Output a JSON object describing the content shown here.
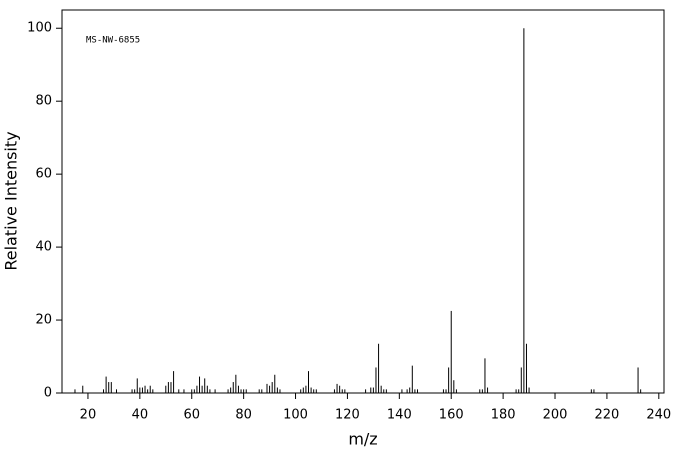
{
  "chart_data": {
    "type": "stem",
    "annotation": "MS-NW-6855",
    "xlabel": "m/z",
    "ylabel": "Relative Intensity",
    "color": "#000000",
    "x": [
      15,
      18,
      26,
      27,
      28,
      29,
      31,
      37,
      38,
      39,
      40,
      41,
      42,
      43,
      44,
      45,
      50,
      51,
      52,
      53,
      55,
      57,
      60,
      61,
      62,
      63,
      64,
      65,
      66,
      67,
      69,
      74,
      75,
      76,
      77,
      78,
      79,
      80,
      81,
      86,
      87,
      89,
      90,
      91,
      92,
      93,
      94,
      102,
      103,
      104,
      105,
      106,
      107,
      108,
      115,
      116,
      117,
      118,
      119,
      127,
      129,
      130,
      131,
      132,
      133,
      134,
      135,
      141,
      143,
      144,
      145,
      146,
      147,
      157,
      158,
      159,
      160,
      161,
      162,
      171,
      172,
      173,
      174,
      185,
      186,
      187,
      188,
      189,
      190,
      214,
      215,
      232,
      233
    ],
    "values": [
      1,
      2,
      1,
      4.5,
      3,
      3,
      1,
      1,
      1,
      4,
      1.5,
      1.5,
      2,
      1,
      2,
      1,
      2,
      3,
      3,
      6,
      1,
      1,
      1,
      1,
      2,
      4.5,
      2,
      4,
      2,
      1,
      1,
      1,
      1.5,
      3,
      5,
      2,
      1,
      1,
      1,
      1,
      1,
      2.5,
      2,
      3,
      5,
      1.5,
      1,
      1,
      1.5,
      2,
      6,
      1.5,
      1,
      1,
      1,
      2.5,
      2,
      1,
      1,
      1,
      1.5,
      1.5,
      7,
      13.5,
      2,
      1,
      1,
      1,
      1,
      1.5,
      7.5,
      1,
      1,
      1,
      1,
      7,
      22.5,
      3.5,
      1,
      1,
      1,
      9.5,
      1.5,
      1,
      1,
      7,
      100,
      13.5,
      1.5,
      1,
      1,
      7,
      1
    ],
    "xlim": [
      10,
      242
    ],
    "ylim": [
      0,
      105
    ],
    "xticks": [
      20,
      40,
      60,
      80,
      100,
      120,
      140,
      160,
      180,
      200,
      220,
      240
    ],
    "yticks": [
      0,
      20,
      40,
      60,
      80,
      100
    ]
  }
}
